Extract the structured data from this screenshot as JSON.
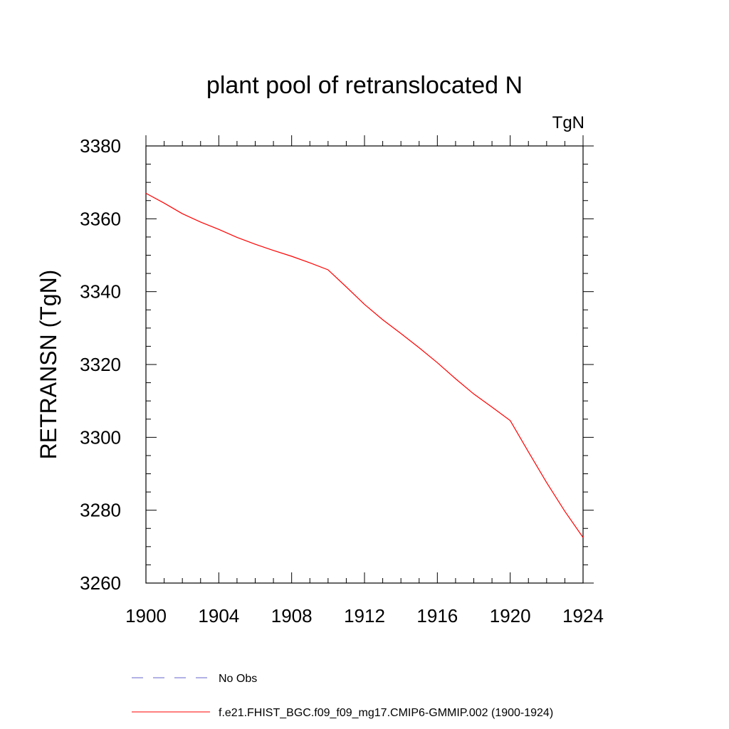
{
  "chart_data": {
    "type": "line",
    "title": "plant pool of retranslocated N",
    "units_label": "TgN",
    "ylabel": "RETRANSN  (TgN)",
    "xlabel": "",
    "xlim": [
      1900,
      1924
    ],
    "ylim": [
      3260,
      3380
    ],
    "x_ticks": [
      1900,
      1904,
      1908,
      1912,
      1916,
      1920,
      1924
    ],
    "y_ticks": [
      3260,
      3280,
      3300,
      3320,
      3340,
      3360,
      3380
    ],
    "grid": false,
    "legend_position": "bottom",
    "series": [
      {
        "name": "f.e21.FHIST_BGC.f09_f09_mg17.CMIP6-GMMIP.002 (1900-1924)",
        "color": "#ff0000",
        "style": "solid",
        "x": [
          1900,
          1901,
          1902,
          1903,
          1904,
          1905,
          1906,
          1907,
          1908,
          1909,
          1910,
          1911,
          1912,
          1913,
          1914,
          1915,
          1916,
          1917,
          1918,
          1919,
          1920,
          1921,
          1922,
          1923,
          1924
        ],
        "y": [
          3367.0,
          3364.3,
          3361.4,
          3359.1,
          3357.1,
          3354.9,
          3353.0,
          3351.3,
          3349.7,
          3347.9,
          3346.0,
          3341.3,
          3336.5,
          3332.3,
          3328.5,
          3324.6,
          3320.5,
          3316.1,
          3311.9,
          3308.3,
          3304.6,
          3296.0,
          3287.6,
          3279.7,
          3272.5
        ]
      }
    ],
    "legend": [
      {
        "label": "No Obs",
        "color": "#6666cc",
        "style": "dashed"
      },
      {
        "label": "f.e21.FHIST_BGC.f09_f09_mg17.CMIP6-GMMIP.002 (1900-1924)",
        "color": "#ff0000",
        "style": "solid"
      }
    ]
  }
}
